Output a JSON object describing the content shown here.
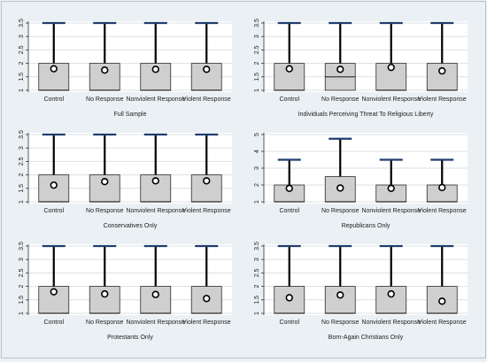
{
  "colors": {
    "background": "#eaf0f3",
    "plot_bg": "#ffffff",
    "grid": "#d9e0e4",
    "box_fill": "#cfcfcf",
    "box_edge": "#2b2b2b",
    "whisker": "#000000",
    "cap": "#1f3d6e",
    "mean_marker": "#000000"
  },
  "chart_data": [
    {
      "type": "box",
      "title": "Full Sample",
      "categories": [
        "Control",
        "No Response",
        "Nonviolent Response",
        "Violent Response"
      ],
      "ylim": [
        1,
        3.5
      ],
      "yticks": [
        1,
        1.5,
        2,
        2.5,
        3,
        3.5
      ],
      "ytick_labels": [
        "1",
        "1.5",
        "2",
        "2.5",
        "3",
        "3.5"
      ],
      "boxes": [
        {
          "q1": 1,
          "median": 1,
          "q3": 2,
          "whisker_low": 1,
          "whisker_high": 3.5,
          "mean": 1.8
        },
        {
          "q1": 1,
          "median": 1,
          "q3": 2,
          "whisker_low": 1,
          "whisker_high": 3.5,
          "mean": 1.75
        },
        {
          "q1": 1,
          "median": 1,
          "q3": 2,
          "whisker_low": 1,
          "whisker_high": 3.5,
          "mean": 1.78
        },
        {
          "q1": 1,
          "median": 1,
          "q3": 2,
          "whisker_low": 1,
          "whisker_high": 3.5,
          "mean": 1.78
        }
      ],
      "grid": true
    },
    {
      "type": "box",
      "title": "Individuals Perceiving Threat To Religious Liberty",
      "categories": [
        "Control",
        "No Response",
        "Nonviolent Response",
        "Violent Response"
      ],
      "ylim": [
        1,
        3.5
      ],
      "yticks": [
        1,
        1.5,
        2,
        2.5,
        3,
        3.5
      ],
      "ytick_labels": [
        "1",
        "1.5",
        "2",
        "2.5",
        "3",
        "3.5"
      ],
      "boxes": [
        {
          "q1": 1,
          "median": 1,
          "q3": 2,
          "whisker_low": 1,
          "whisker_high": 3.5,
          "mean": 1.8
        },
        {
          "q1": 1,
          "median": 1.5,
          "q3": 2,
          "whisker_low": 1,
          "whisker_high": 3.5,
          "mean": 1.78
        },
        {
          "q1": 1,
          "median": 1,
          "q3": 2,
          "whisker_low": 1,
          "whisker_high": 3.5,
          "mean": 1.85
        },
        {
          "q1": 1,
          "median": 1,
          "q3": 2,
          "whisker_low": 1,
          "whisker_high": 3.5,
          "mean": 1.72
        }
      ],
      "grid": true
    },
    {
      "type": "box",
      "title": "Conservatives Only",
      "categories": [
        "Control",
        "No Response",
        "Nonviolent Response",
        "Violent Response"
      ],
      "ylim": [
        1,
        3.5
      ],
      "yticks": [
        1,
        1.5,
        2,
        2.5,
        3,
        3.5
      ],
      "ytick_labels": [
        "1",
        "1.5",
        "2",
        "2.5",
        "3",
        "3.5"
      ],
      "boxes": [
        {
          "q1": 1,
          "median": 1,
          "q3": 2,
          "whisker_low": 1,
          "whisker_high": 3.5,
          "mean": 1.62
        },
        {
          "q1": 1,
          "median": 1,
          "q3": 2,
          "whisker_low": 1,
          "whisker_high": 3.5,
          "mean": 1.75
        },
        {
          "q1": 1,
          "median": 1,
          "q3": 2,
          "whisker_low": 1,
          "whisker_high": 3.5,
          "mean": 1.78
        },
        {
          "q1": 1,
          "median": 1,
          "q3": 2,
          "whisker_low": 1,
          "whisker_high": 3.5,
          "mean": 1.78
        }
      ],
      "grid": true
    },
    {
      "type": "box",
      "title": "Republicans Only",
      "categories": [
        "Control",
        "No Response",
        "Nonviolent Response",
        "Violent Response"
      ],
      "ylim": [
        1,
        5
      ],
      "yticks": [
        1,
        2,
        3,
        4,
        5
      ],
      "ytick_labels": [
        "1",
        "2",
        "3",
        "4",
        "5"
      ],
      "boxes": [
        {
          "q1": 1,
          "median": 1,
          "q3": 2,
          "whisker_low": 1,
          "whisker_high": 3.5,
          "mean": 1.8
        },
        {
          "q1": 1,
          "median": 1,
          "q3": 2.5,
          "whisker_low": 1,
          "whisker_high": 4.75,
          "mean": 1.82
        },
        {
          "q1": 1,
          "median": 1,
          "q3": 2,
          "whisker_low": 1,
          "whisker_high": 3.5,
          "mean": 1.8
        },
        {
          "q1": 1,
          "median": 1,
          "q3": 2,
          "whisker_low": 1,
          "whisker_high": 3.5,
          "mean": 1.85
        }
      ],
      "grid": true
    },
    {
      "type": "box",
      "title": "Protestants Only",
      "categories": [
        "Control",
        "No Response",
        "Nonviolent Response",
        "Violent Response"
      ],
      "ylim": [
        1,
        3.5
      ],
      "yticks": [
        1,
        1.5,
        2,
        2.5,
        3,
        3.5
      ],
      "ytick_labels": [
        "1",
        "1.5",
        "2",
        "2.5",
        "3",
        "3.5"
      ],
      "boxes": [
        {
          "q1": 1,
          "median": 1,
          "q3": 2,
          "whisker_low": 1,
          "whisker_high": 3.5,
          "mean": 1.8
        },
        {
          "q1": 1,
          "median": 1,
          "q3": 2,
          "whisker_low": 1,
          "whisker_high": 3.5,
          "mean": 1.72
        },
        {
          "q1": 1,
          "median": 1,
          "q3": 2,
          "whisker_low": 1,
          "whisker_high": 3.5,
          "mean": 1.7
        },
        {
          "q1": 1,
          "median": 1,
          "q3": 2,
          "whisker_low": 1,
          "whisker_high": 3.5,
          "mean": 1.55
        }
      ],
      "grid": true
    },
    {
      "type": "box",
      "title": "Born-Again Christians Only",
      "categories": [
        "Control",
        "No Response",
        "Nonviolent Response",
        "Violent Response"
      ],
      "ylim": [
        1,
        3.5
      ],
      "yticks": [
        1,
        1.5,
        2,
        2.5,
        3,
        3.5
      ],
      "ytick_labels": [
        "1",
        "1.5",
        "2",
        "2.5",
        "3",
        "3.5"
      ],
      "boxes": [
        {
          "q1": 1,
          "median": 1,
          "q3": 2,
          "whisker_low": 1,
          "whisker_high": 3.5,
          "mean": 1.58
        },
        {
          "q1": 1,
          "median": 1,
          "q3": 2,
          "whisker_low": 1,
          "whisker_high": 3.5,
          "mean": 1.68
        },
        {
          "q1": 1,
          "median": 1,
          "q3": 2,
          "whisker_low": 1,
          "whisker_high": 3.5,
          "mean": 1.72
        },
        {
          "q1": 1,
          "median": 1,
          "q3": 2,
          "whisker_low": 1,
          "whisker_high": 3.5,
          "mean": 1.45
        }
      ],
      "grid": true
    }
  ]
}
